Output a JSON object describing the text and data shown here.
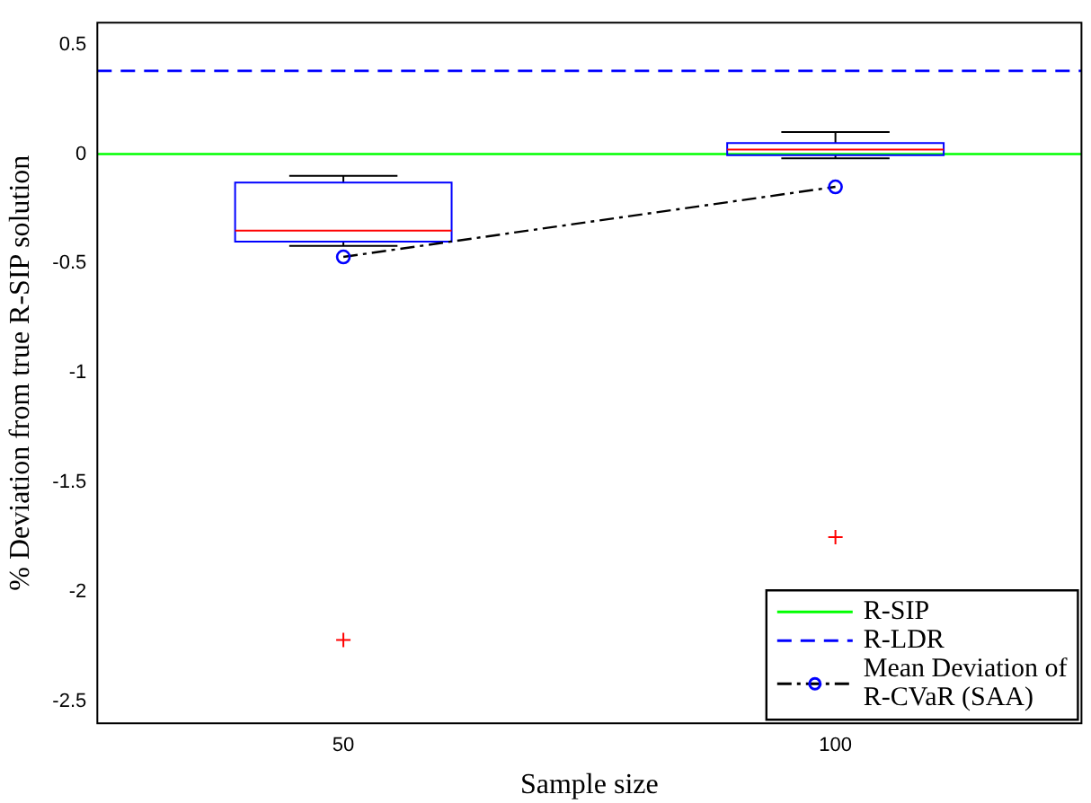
{
  "chart_data": {
    "type": "box",
    "xlabel": "Sample size",
    "ylabel": "% Deviation from true R-SIP solution",
    "categories": [
      "50",
      "100"
    ],
    "boxes": [
      {
        "low": -0.42,
        "q1": -0.4,
        "median": -0.35,
        "q3": -0.13,
        "high": -0.1,
        "outliers": [
          -2.22
        ]
      },
      {
        "low": -0.02,
        "q1": -0.005,
        "median": 0.02,
        "q3": 0.05,
        "high": 0.1,
        "outliers": [
          -1.75
        ]
      }
    ],
    "series": [
      {
        "type": "line",
        "name": "Mean Deviation of R-CVaR (SAA)",
        "color": "#000000",
        "values": [
          -0.47,
          -0.15
        ],
        "marker": "circle",
        "line_style": "dashdot"
      }
    ],
    "ref_lines": [
      {
        "axis": "y",
        "value": 0,
        "label": "R-SIP",
        "color": "#00ff00",
        "line_style": "solid"
      },
      {
        "axis": "y",
        "value": 0.38,
        "label": "R-LDR",
        "color": "#0000ff",
        "line_style": "dashed"
      }
    ],
    "ylim": [
      -2.6,
      0.6
    ],
    "yticks": [
      -2.5,
      -2,
      -1.5,
      -1,
      -0.5,
      0,
      0.5
    ],
    "grid": false,
    "legend": "bottom right"
  }
}
